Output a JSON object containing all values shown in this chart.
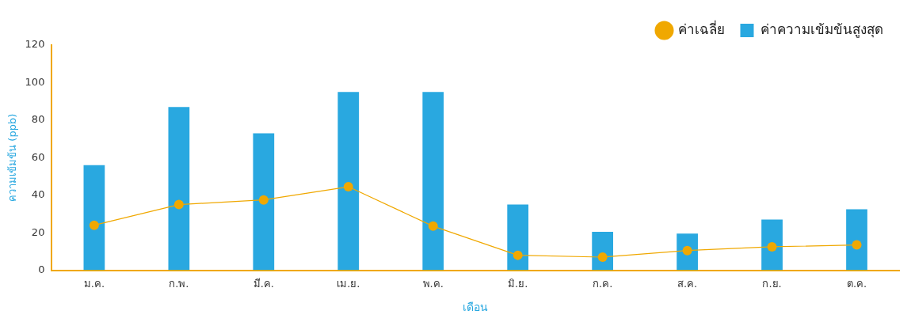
{
  "chart_data": {
    "type": "bar",
    "xlabel": "เดือน",
    "ylabel": "ความเข้มข้น (ppb)",
    "categories": [
      "ม.ค.",
      "ก.พ.",
      "มี.ค.",
      "เม.ย.",
      "พ.ค.",
      "มิ.ย.",
      "ก.ค.",
      "ส.ค.",
      "ก.ย.",
      "ต.ค."
    ],
    "series": [
      {
        "name": "ค่าความเข้มข้นสูงสุด",
        "color": "#29a8e0",
        "values": [
          56,
          87,
          73,
          95,
          95,
          35,
          20.5,
          19.5,
          27,
          32.5
        ]
      },
      {
        "name": "ค่าเฉลี่ย",
        "type": "line",
        "color": "#f0a800",
        "values": [
          24,
          35,
          37.5,
          44.5,
          23.5,
          8,
          7,
          10.5,
          12.5,
          13.5
        ],
        "marker": "circle"
      }
    ],
    "ylim": [
      0,
      120
    ],
    "yticks": [
      0,
      20,
      40,
      60,
      80,
      100,
      120
    ],
    "grid": false,
    "legend": "top right"
  }
}
